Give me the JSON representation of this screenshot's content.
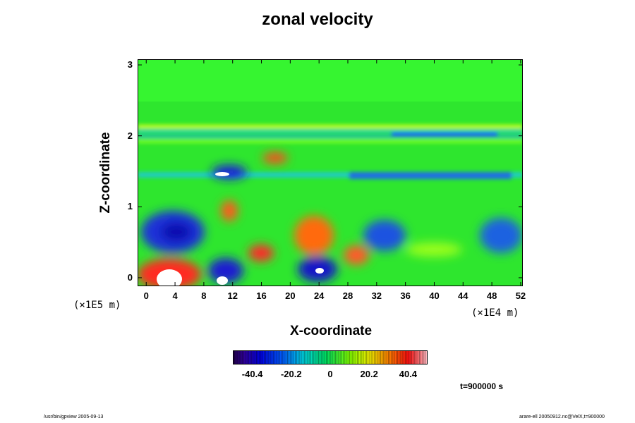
{
  "chart_data": {
    "type": "heatmap",
    "title": "zonal velocity",
    "xlabel": "X-coordinate",
    "ylabel": "Z-coordinate",
    "x_ticks": [
      "0",
      "4",
      "8",
      "12",
      "16",
      "20",
      "24",
      "28",
      "32",
      "36",
      "40",
      "44",
      "48",
      "52"
    ],
    "x_unit": "(×1E4 m)",
    "y_ticks": [
      "0",
      "1",
      "2",
      "3"
    ],
    "y_unit": "(×1E5 m)",
    "xlim": [
      -1.2,
      52.3
    ],
    "ylim": [
      -0.12,
      3.08
    ],
    "colorbar": {
      "tick_labels": [
        "-40.4",
        "-20.2",
        "0",
        "20.2",
        "40.4"
      ],
      "tick_values": [
        -40.4,
        -20.2,
        0,
        20.2,
        40.4
      ],
      "range": [
        -50.5,
        50.5
      ]
    },
    "grid": false,
    "features": [
      {
        "x": 3,
        "z": 0.05,
        "value": 60
      },
      {
        "x": 2.5,
        "z": 0.6,
        "value": -40
      },
      {
        "x": 11.5,
        "z": 0.05,
        "value": -55
      },
      {
        "x": 12,
        "z": 0.9,
        "value": 35
      },
      {
        "x": 18,
        "z": 0.3,
        "value": 35
      },
      {
        "x": 24,
        "z": 0.6,
        "value": 30
      },
      {
        "x": 24,
        "z": 0.05,
        "value": -50
      },
      {
        "x": 11.5,
        "z": 1.45,
        "value": -45
      },
      {
        "x": 19,
        "z": 1.65,
        "value": 30
      },
      {
        "x": 34,
        "z": 0.6,
        "value": -35
      },
      {
        "x": 50,
        "z": 0.6,
        "value": -25
      }
    ]
  },
  "annotation": {
    "time_label": "t=900000 s"
  },
  "footer": {
    "left": "/usr/bin/gpview 2005-09-13",
    "right": "arare-ell 20050912.nc@VelX,t=900000"
  }
}
